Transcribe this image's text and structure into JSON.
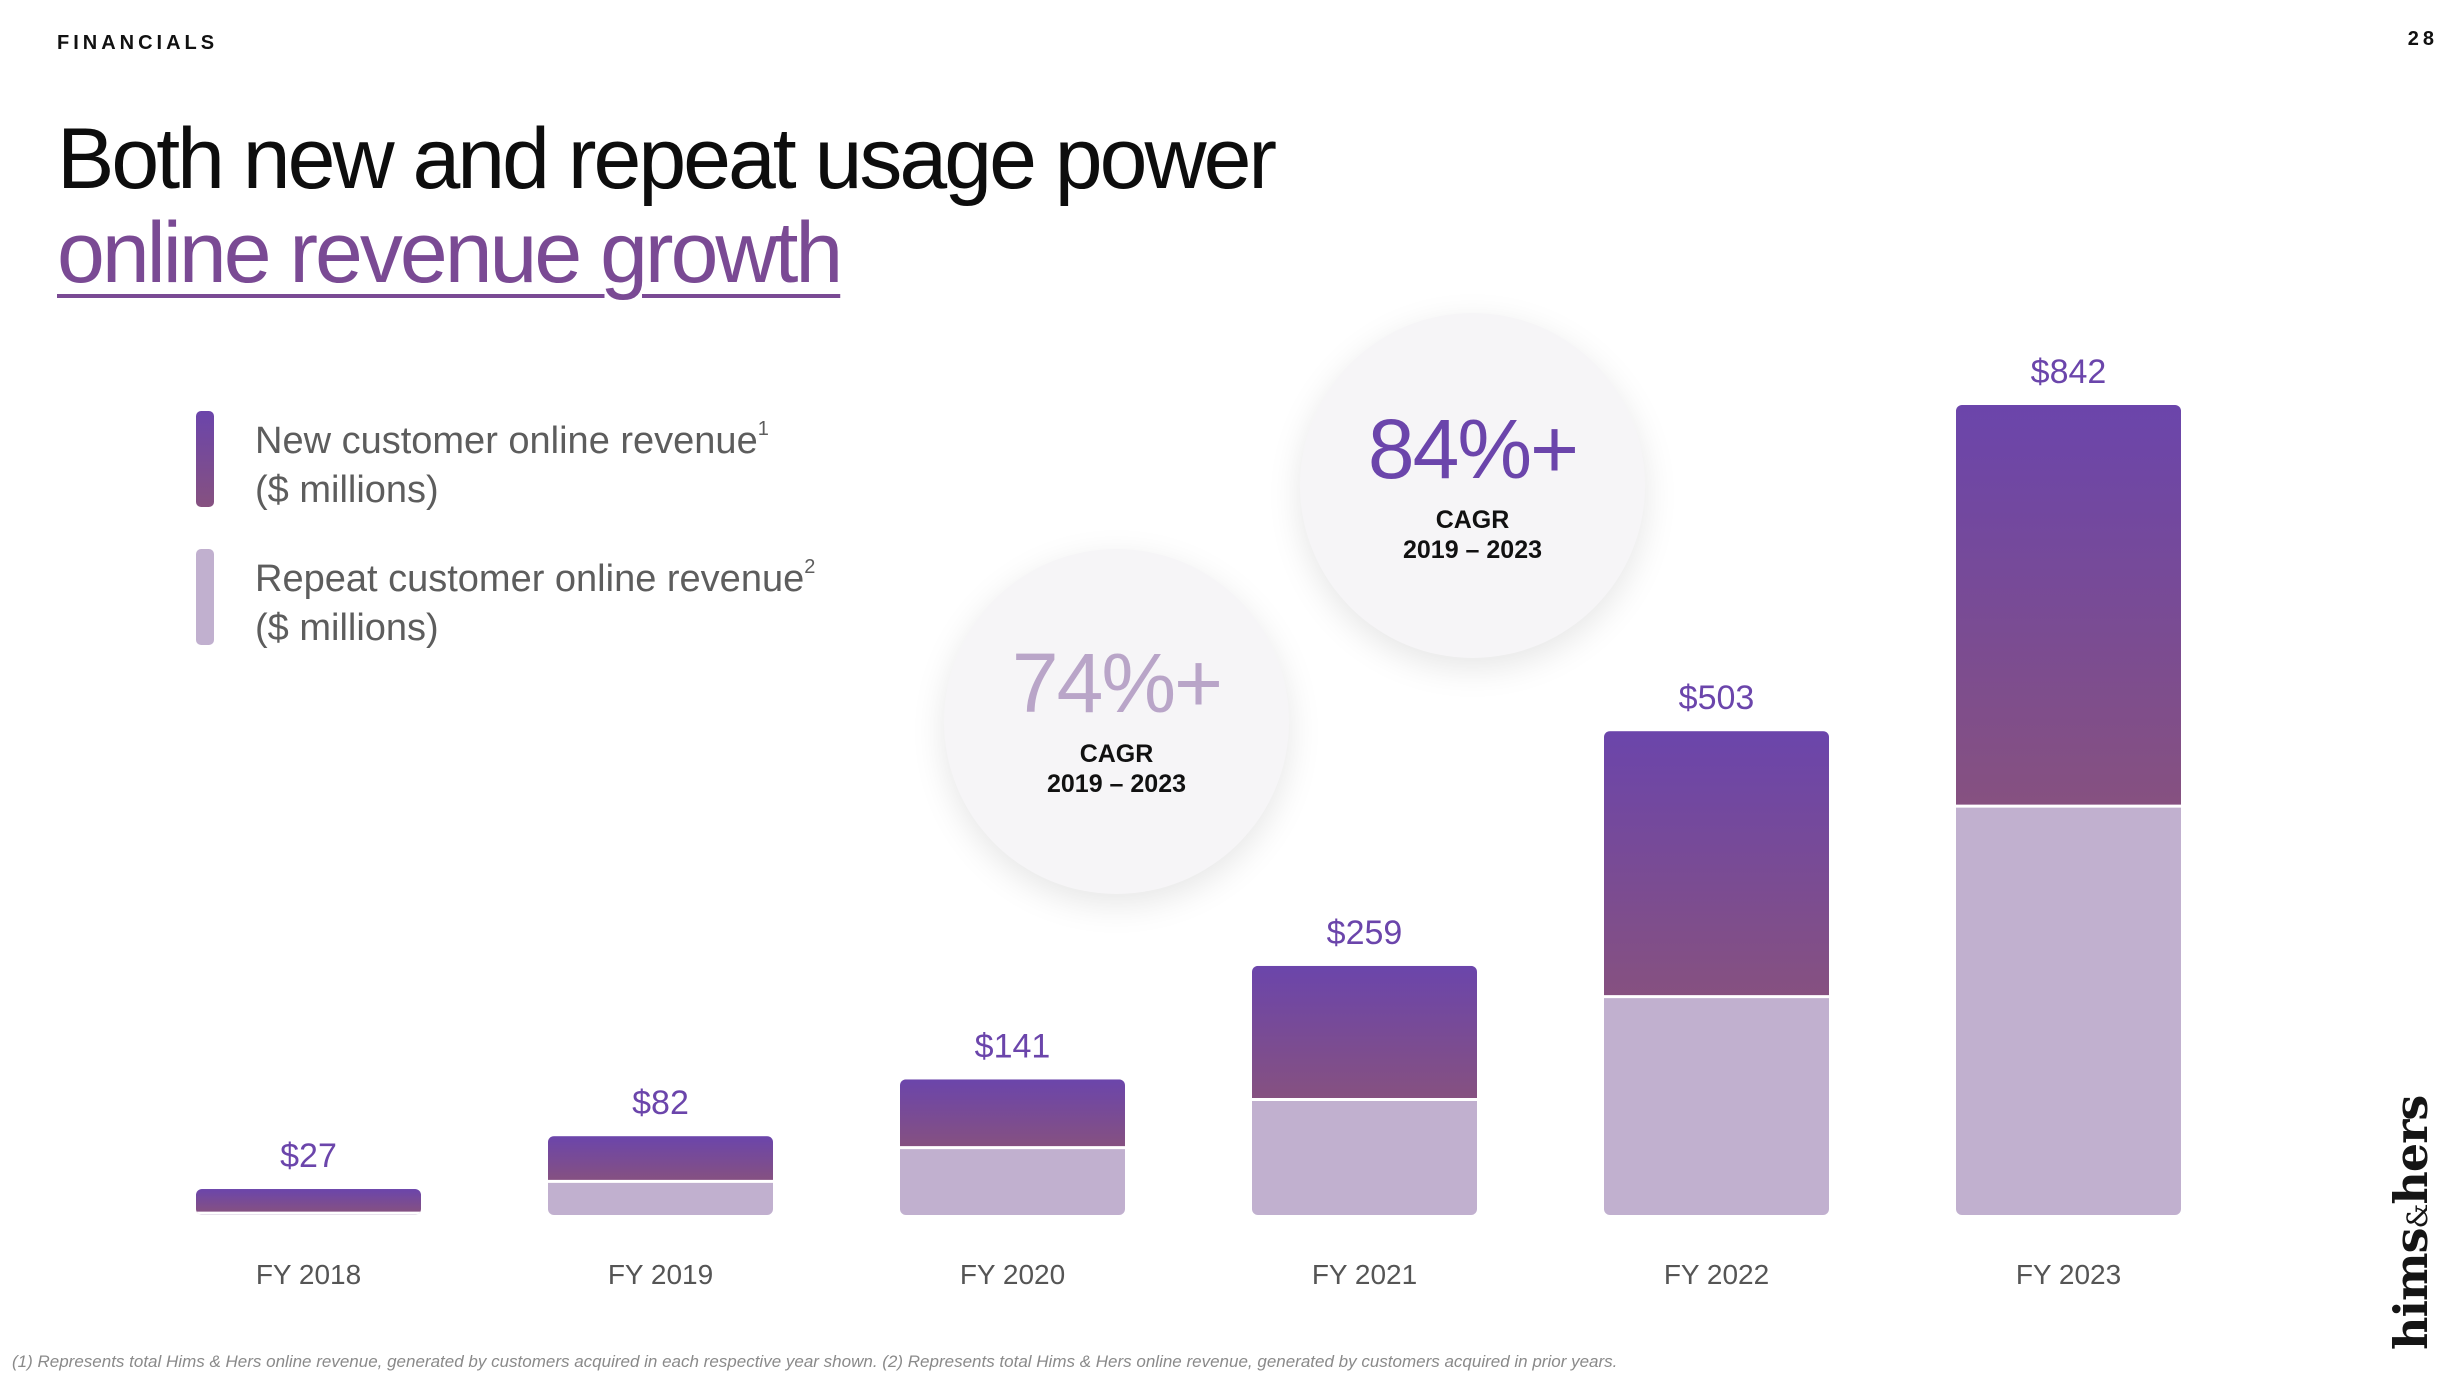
{
  "header": {
    "section": "FINANCIALS",
    "page_number": "28"
  },
  "title": {
    "line1": "Both new and repeat usage power",
    "line2": "online revenue growth"
  },
  "legend": [
    {
      "label": "New customer online revenue",
      "note": "1",
      "unit": "($ millions)"
    },
    {
      "label": "Repeat customer online revenue",
      "note": "2",
      "unit": "($ millions)"
    }
  ],
  "colors": {
    "new_top": "#6b45ab",
    "new_bottom": "#865180",
    "repeat": "#c1b0cf",
    "total_label": "#6b45ab",
    "cagr_74": "#b9a5c8",
    "cagr_84": "#6b45ab"
  },
  "callouts": {
    "cagr_2023": {
      "value": "74%+",
      "label": "CAGR",
      "range": "2019 – 2023"
    },
    "cagr_new": {
      "value": "84%+",
      "label": "CAGR",
      "range": "2019 – 2023"
    }
  },
  "chart_data": {
    "type": "bar",
    "stacked": true,
    "categories": [
      "FY 2018",
      "FY 2019",
      "FY 2020",
      "FY 2021",
      "FY 2022",
      "FY 2023"
    ],
    "series": [
      {
        "name": "Repeat customer online revenue",
        "values": [
          2,
          35,
          70,
          120,
          227,
          425
        ]
      },
      {
        "name": "New customer online revenue",
        "values": [
          25,
          47,
          71,
          139,
          276,
          417
        ]
      }
    ],
    "totals": [
      27,
      82,
      141,
      259,
      503,
      842
    ],
    "total_labels": [
      "$27",
      "$82",
      "$141",
      "$259",
      "$503",
      "$842"
    ],
    "ylabel": "$ millions",
    "ylim": [
      0,
      842
    ],
    "grid": false
  },
  "footnote": "(1) Represents total Hims & Hers online revenue, generated by customers acquired in each respective year shown. (2) Represents total Hims & Hers online revenue, generated by customers acquired in prior years.",
  "brand": {
    "name1": "hims",
    "amp": "&",
    "name2": "hers"
  }
}
